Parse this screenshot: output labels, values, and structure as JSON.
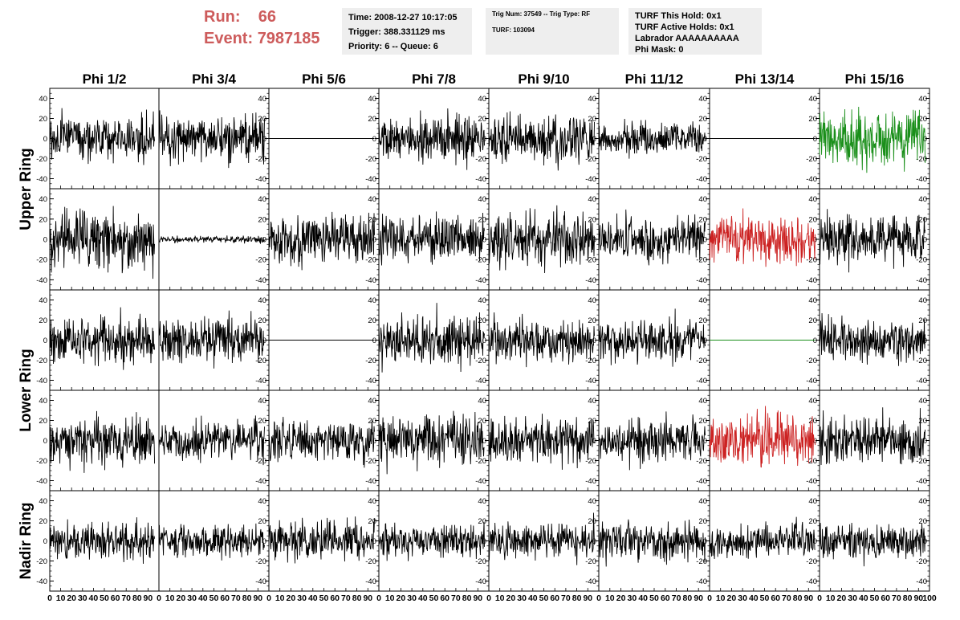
{
  "run": {
    "run_label": "Run:",
    "run_value": "66",
    "event_label": "Event:",
    "event_value": "7987185"
  },
  "info_time": {
    "time": "Time: 2008-12-27 10:17:05",
    "trigger": "Trigger: 388.331129 ms",
    "priority": "Priority: 6 -- Queue: 6"
  },
  "info_trig": {
    "trig": "Trig Num: 37549 -- Trig Type: RF",
    "turf": "TURF: 103094"
  },
  "info_turf": {
    "this_hold": "TURF This Hold: 0x1",
    "active_holds": "TURF Active Holds: 0x1",
    "labrador": "Labrador AAAAAAAAAA",
    "phi_mask": "Phi Mask: 0"
  },
  "chart_data": {
    "type": "line",
    "columns": [
      "Phi 1/2",
      "Phi 3/4",
      "Phi 5/6",
      "Phi 7/8",
      "Phi 9/10",
      "Phi 11/12",
      "Phi 13/14",
      "Phi 15/16"
    ],
    "row_groups": [
      {
        "label": "Upper Ring",
        "rows": [
          0,
          1
        ]
      },
      {
        "label": "Lower Ring",
        "rows": [
          2,
          3
        ]
      },
      {
        "label": "Nadir Ring",
        "rows": [
          4
        ]
      }
    ],
    "xlim": [
      0,
      100
    ],
    "ylim": [
      -50,
      50
    ],
    "y_ticks": [
      -40,
      -20,
      0,
      20,
      40
    ],
    "x_ticks": [
      0,
      10,
      20,
      30,
      40,
      50,
      60,
      70,
      80,
      90,
      100
    ],
    "colors": {
      "normal": "#000000",
      "triggered": "#1a8f1a",
      "hit": "#cc2222"
    },
    "samples_per_trace": 260,
    "trace_x_end": 96,
    "panels": [
      [
        {
          "amp": 11,
          "c": "normal"
        },
        {
          "amp": 11,
          "c": "normal"
        },
        {
          "amp": 0,
          "c": "normal"
        },
        {
          "amp": 11,
          "c": "normal"
        },
        {
          "amp": 11,
          "c": "normal"
        },
        {
          "amp": 8,
          "c": "normal"
        },
        {
          "amp": 0,
          "c": "normal"
        },
        {
          "amp": 14,
          "c": "triggered"
        }
      ],
      [
        {
          "amp": 15,
          "c": "normal"
        },
        {
          "amp": 1.6,
          "c": "normal"
        },
        {
          "amp": 12,
          "c": "normal"
        },
        {
          "amp": 12,
          "c": "normal"
        },
        {
          "amp": 13,
          "c": "normal"
        },
        {
          "amp": 10,
          "c": "normal"
        },
        {
          "amp": 12,
          "c": "hit"
        },
        {
          "amp": 12,
          "c": "normal"
        }
      ],
      [
        {
          "amp": 11,
          "c": "normal"
        },
        {
          "amp": 11,
          "c": "normal"
        },
        {
          "amp": 0,
          "c": "normal"
        },
        {
          "amp": 12,
          "c": "normal"
        },
        {
          "amp": 10,
          "c": "normal"
        },
        {
          "amp": 10,
          "c": "normal"
        },
        {
          "amp": 0,
          "c": "triggered"
        },
        {
          "amp": 10,
          "c": "normal"
        }
      ],
      [
        {
          "amp": 11,
          "c": "normal"
        },
        {
          "amp": 10,
          "c": "normal"
        },
        {
          "amp": 11,
          "c": "normal"
        },
        {
          "amp": 12,
          "c": "normal"
        },
        {
          "amp": 11,
          "c": "normal"
        },
        {
          "amp": 11,
          "c": "normal"
        },
        {
          "amp": 13,
          "c": "hit"
        },
        {
          "amp": 12,
          "c": "normal"
        }
      ],
      [
        {
          "amp": 9,
          "c": "normal"
        },
        {
          "amp": 8,
          "c": "normal"
        },
        {
          "amp": 9,
          "c": "normal"
        },
        {
          "amp": 8,
          "c": "normal"
        },
        {
          "amp": 9,
          "c": "normal"
        },
        {
          "amp": 9,
          "c": "normal"
        },
        {
          "amp": 8,
          "c": "normal"
        },
        {
          "amp": 9,
          "c": "normal"
        }
      ]
    ]
  }
}
